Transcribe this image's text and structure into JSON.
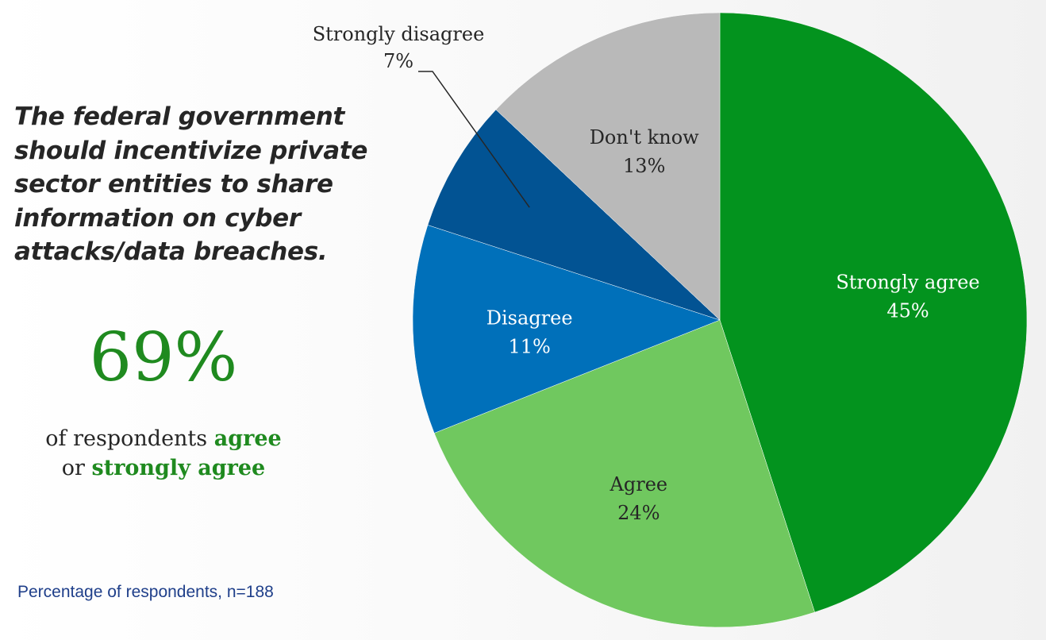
{
  "headline": {
    "lines": [
      "The federal government",
      "should incentivize private",
      "sector entities to share",
      "information on cyber",
      "attacks/data breaches."
    ]
  },
  "callout": {
    "value": "69%",
    "text_1": "of respondents ",
    "agree": "agree",
    "text_2": "or ",
    "strongly_agree": "strongly agree"
  },
  "footnote": "Percentage of respondents, n=188",
  "chart_data": {
    "type": "pie",
    "slices": [
      {
        "label": "Strongly agree",
        "value": 45,
        "value_label": "45%",
        "color": "#03931e",
        "text_color": "#ffffff"
      },
      {
        "label": "Agree",
        "value": 24,
        "value_label": "24%",
        "color": "#70c85f",
        "text_color": "#262626"
      },
      {
        "label": "Disagree",
        "value": 11,
        "value_label": "11%",
        "color": "#0070ba",
        "text_color": "#ffffff"
      },
      {
        "label": "Strongly disagree",
        "value": 7,
        "value_label": "7%",
        "color": "#025393",
        "text_color": "#262626",
        "label_outside": true
      },
      {
        "label": "Don't know",
        "value": 13,
        "value_label": "13%",
        "color": "#b9b9b9",
        "text_color": "#262626"
      }
    ],
    "start": "12 o'clock",
    "direction": "clockwise"
  }
}
